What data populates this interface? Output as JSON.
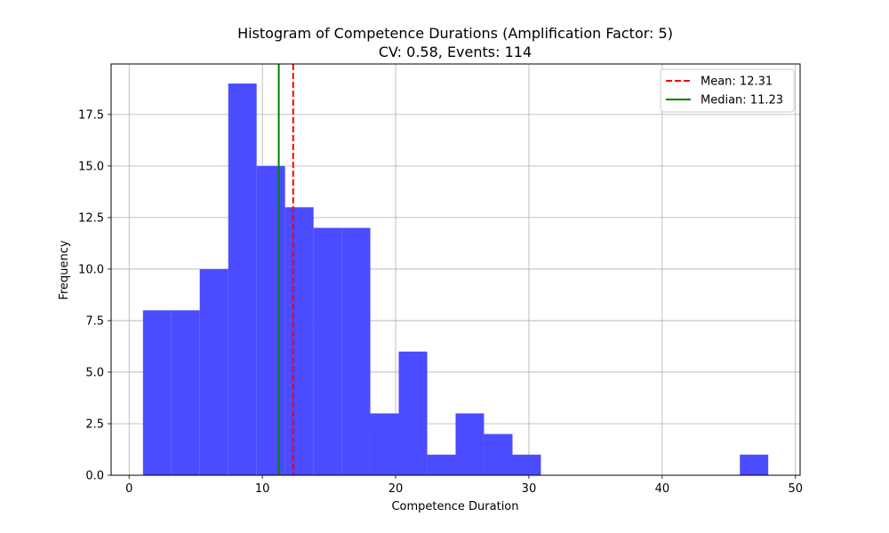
{
  "chart_data": {
    "type": "bar",
    "title": "Histogram of Competence Durations (Amplification Factor: 5)",
    "subtitle": "CV: 0.58, Events: 114",
    "xlabel": "Competence Duration",
    "ylabel": "Frequency",
    "xlim": [
      -1.35,
      50.35
    ],
    "ylim": [
      0,
      19.95
    ],
    "xticks": [
      0,
      10,
      20,
      30,
      40,
      50
    ],
    "xtick_labels": [
      "0",
      "10",
      "20",
      "30",
      "40",
      "50"
    ],
    "yticks": [
      0,
      2.5,
      5,
      7.5,
      10,
      12.5,
      15,
      17.5
    ],
    "ytick_labels": [
      "0.0",
      "2.5",
      "5.0",
      "7.5",
      "10.0",
      "12.5",
      "15.0",
      "17.5"
    ],
    "grid": true,
    "bin_edges": [
      1.04,
      3.17,
      5.3,
      7.44,
      9.57,
      11.7,
      13.84,
      15.97,
      18.1,
      20.23,
      22.37,
      24.5,
      26.63,
      28.77,
      30.9,
      33.03,
      35.16,
      37.3,
      39.43,
      41.56,
      43.7,
      45.83,
      47.96
    ],
    "values": [
      8,
      8,
      10,
      19,
      15,
      13,
      12,
      12,
      3,
      6,
      1,
      3,
      2,
      1,
      0,
      0,
      0,
      0,
      0,
      0,
      0,
      1
    ],
    "bar_color": "#4b4bff",
    "lines": [
      {
        "name": "Mean: 12.31",
        "x": 12.31,
        "color": "#ff0000",
        "style": "dashed"
      },
      {
        "name": "Median: 11.23",
        "x": 11.23,
        "color": "#008000",
        "style": "solid"
      }
    ],
    "legend_position": "top-right"
  }
}
